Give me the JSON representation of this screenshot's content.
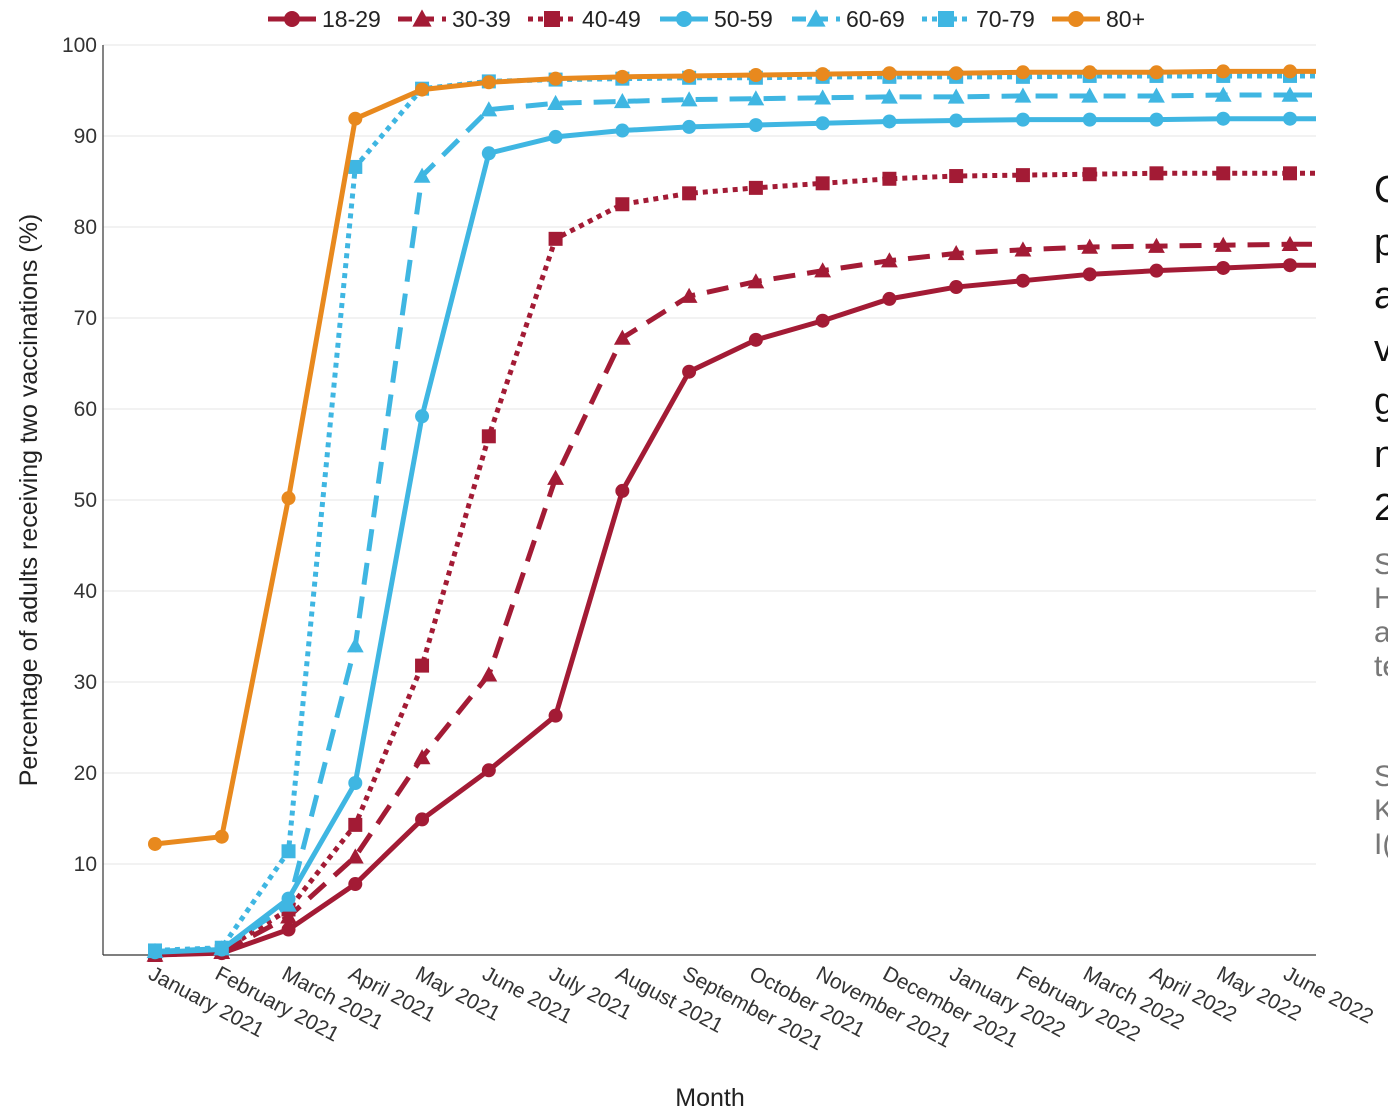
{
  "side_text": {
    "main_lines": [
      "C",
      "p",
      "a",
      "v",
      "g",
      "n",
      "2"
    ],
    "source_lines": [
      "S",
      "H",
      "a",
      "te"
    ],
    "note_lines": [
      "S",
      "K",
      "I("
    ]
  },
  "chart_data": {
    "type": "line",
    "title": "",
    "xlabel": "Month",
    "ylabel": "Percentage of adults receiving two vaccinations (%)",
    "ylim": [
      0,
      100
    ],
    "yticks": [
      10,
      20,
      30,
      40,
      50,
      60,
      70,
      80,
      90,
      100
    ],
    "grid": "horizontal",
    "legend": "top",
    "categories": [
      "January 2021",
      "February 2021",
      "March 2021",
      "April 2021",
      "May 2021",
      "June 2021",
      "July 2021",
      "August 2021",
      "September 2021",
      "October 2021",
      "November 2021",
      "December 2021",
      "January 2022",
      "February 2022",
      "March 2022",
      "April 2022",
      "May 2022",
      "June 2022"
    ],
    "series": [
      {
        "name": "18-29",
        "color": "#a31b35",
        "dash": "solid",
        "marker": "circle",
        "values": [
          0,
          0.2,
          2.8,
          7.8,
          14.9,
          20.3,
          26.3,
          51.0,
          64.1,
          67.6,
          69.7,
          72.1,
          73.4,
          74.1,
          74.8,
          75.2,
          75.5,
          75.8
        ]
      },
      {
        "name": "30-39",
        "color": "#a31b35",
        "dash": "dashed",
        "marker": "triangle",
        "values": [
          0,
          0.3,
          4.2,
          10.8,
          21.7,
          30.8,
          52.4,
          67.8,
          72.4,
          74.0,
          75.2,
          76.3,
          77.1,
          77.5,
          77.8,
          77.9,
          78.0,
          78.1
        ]
      },
      {
        "name": "40-49",
        "color": "#a31b35",
        "dash": "dotted",
        "marker": "square",
        "values": [
          0,
          0.4,
          5.0,
          14.3,
          31.8,
          57.0,
          78.7,
          82.5,
          83.7,
          84.3,
          84.8,
          85.3,
          85.6,
          85.7,
          85.8,
          85.9,
          85.9,
          85.9
        ]
      },
      {
        "name": "50-59",
        "color": "#3fb6e2",
        "dash": "solid",
        "marker": "circle",
        "values": [
          0.3,
          0.6,
          6.2,
          18.9,
          59.2,
          88.1,
          89.9,
          90.6,
          91.0,
          91.2,
          91.4,
          91.6,
          91.7,
          91.8,
          91.8,
          91.8,
          91.9,
          91.9
        ]
      },
      {
        "name": "60-69",
        "color": "#3fb6e2",
        "dash": "dashed",
        "marker": "triangle",
        "values": [
          0.4,
          0.7,
          5.5,
          34.0,
          85.6,
          92.9,
          93.6,
          93.8,
          94.0,
          94.1,
          94.2,
          94.3,
          94.3,
          94.4,
          94.4,
          94.4,
          94.5,
          94.5
        ]
      },
      {
        "name": "70-79",
        "color": "#3fb6e2",
        "dash": "dotted",
        "marker": "square",
        "values": [
          0.5,
          0.8,
          11.4,
          86.6,
          95.2,
          96.0,
          96.2,
          96.3,
          96.4,
          96.4,
          96.5,
          96.5,
          96.5,
          96.5,
          96.6,
          96.6,
          96.6,
          96.6
        ]
      },
      {
        "name": "80+",
        "color": "#e8891e",
        "dash": "solid",
        "marker": "circle",
        "values": [
          12.2,
          13.0,
          50.2,
          91.9,
          95.1,
          95.9,
          96.3,
          96.5,
          96.6,
          96.7,
          96.8,
          96.9,
          96.9,
          97.0,
          97.0,
          97.0,
          97.1,
          97.1
        ]
      }
    ]
  }
}
